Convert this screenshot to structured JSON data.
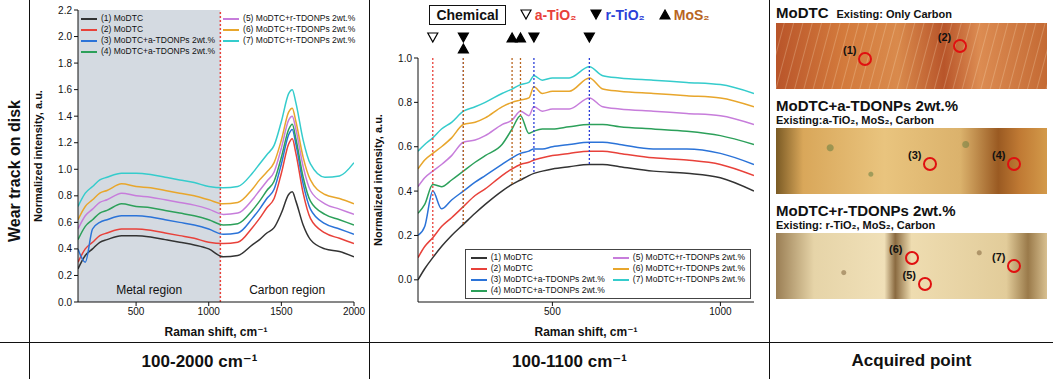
{
  "row_label": "Wear track on disk",
  "column_labels": [
    "100-2000 cm⁻¹",
    "100-1100 cm⁻¹",
    "Acquired point"
  ],
  "chart_data": [
    {
      "type": "line",
      "x_label": "Raman shift, cm⁻¹",
      "y_label": "Normalized intensity, a.u.",
      "x": [
        100,
        150,
        200,
        250,
        300,
        400,
        500,
        600,
        700,
        800,
        900,
        1000,
        1100,
        1200,
        1300,
        1350,
        1400,
        1450,
        1500,
        1550,
        1575,
        1600,
        1650,
        1700,
        1800,
        1900,
        2000
      ],
      "xlim": [
        100,
        2000
      ],
      "xticks": [
        500,
        1000,
        1500,
        2000
      ],
      "ylim": [
        0,
        2.2
      ],
      "yticks": [
        {
          "value": 0,
          "label": "0.0"
        },
        0.2,
        0.4,
        0.6,
        0.8,
        {
          "value": 1,
          "label": "1.0"
        },
        1.2,
        1.4,
        1.6,
        1.8,
        {
          "value": 2,
          "label": "2.0"
        },
        2.2
      ],
      "grid": false,
      "legend": "upper left",
      "series": [
        {
          "name": "(1) MoDTC",
          "color": "#333333",
          "values": [
            0.25,
            0.35,
            0.4,
            0.45,
            0.47,
            0.5,
            0.5,
            0.49,
            0.47,
            0.45,
            0.43,
            0.4,
            0.34,
            0.35,
            0.43,
            0.47,
            0.52,
            0.56,
            0.67,
            0.81,
            0.83,
            0.76,
            0.58,
            0.47,
            0.4,
            0.38,
            0.34
          ]
        },
        {
          "name": "(2) MoDTC",
          "color": "#e8413a",
          "values": [
            0.3,
            0.4,
            0.45,
            0.5,
            0.52,
            0.55,
            0.55,
            0.54,
            0.52,
            0.5,
            0.48,
            0.45,
            0.44,
            0.45,
            0.56,
            0.63,
            0.71,
            0.78,
            0.97,
            1.19,
            1.23,
            1.12,
            0.82,
            0.63,
            0.52,
            0.48,
            0.44
          ]
        },
        {
          "name": "(3) MoDTC+a-TDONPs 2wt.%",
          "color": "#2b73d8",
          "values": [
            0.4,
            0.3,
            0.55,
            0.6,
            0.62,
            0.65,
            0.65,
            0.64,
            0.62,
            0.6,
            0.58,
            0.55,
            0.51,
            0.52,
            0.63,
            0.7,
            0.78,
            0.85,
            1.04,
            1.26,
            1.3,
            1.19,
            0.89,
            0.7,
            0.59,
            0.55,
            0.51
          ]
        },
        {
          "name": "(4) MoDTC+a-TDONPs 2wt.%",
          "color": "#2ca05a",
          "values": [
            0.47,
            0.57,
            0.62,
            0.67,
            0.69,
            0.74,
            0.72,
            0.71,
            0.69,
            0.67,
            0.65,
            0.62,
            0.58,
            0.59,
            0.69,
            0.76,
            0.84,
            0.91,
            1.09,
            1.3,
            1.34,
            1.23,
            0.94,
            0.76,
            0.66,
            0.62,
            0.58
          ]
        },
        {
          "name": "(5) MoDTC+r-TDONPs 2wt.%",
          "color": "#c77ddb",
          "values": [
            0.55,
            0.65,
            0.7,
            0.75,
            0.77,
            0.82,
            0.8,
            0.79,
            0.77,
            0.75,
            0.73,
            0.7,
            0.66,
            0.67,
            0.77,
            0.84,
            0.91,
            0.98,
            1.16,
            1.37,
            1.4,
            1.3,
            1.02,
            0.84,
            0.74,
            0.7,
            0.66
          ]
        },
        {
          "name": "(6) MoDTC+r-TDONPs 2wt.%",
          "color": "#e8a62c",
          "values": [
            0.62,
            0.72,
            0.77,
            0.82,
            0.84,
            0.89,
            0.87,
            0.86,
            0.84,
            0.82,
            0.8,
            0.77,
            0.74,
            0.75,
            0.85,
            0.92,
            0.98,
            1.05,
            1.22,
            1.43,
            1.46,
            1.36,
            1.09,
            0.92,
            0.81,
            0.78,
            0.74
          ]
        },
        {
          "name": "(7) MoDTC+r-TDONPs 2wt.%",
          "color": "#35cccc",
          "values": [
            0.72,
            0.82,
            0.87,
            0.92,
            0.94,
            0.97,
            0.97,
            0.96,
            0.94,
            0.92,
            0.9,
            0.87,
            0.86,
            0.87,
            0.97,
            1.04,
            1.11,
            1.18,
            1.36,
            1.57,
            1.6,
            1.5,
            1.22,
            1.04,
            0.94,
            0.95,
            1.05
          ]
        }
      ],
      "regions": [
        {
          "label": "Metal region",
          "x": [
            100,
            1080
          ],
          "color": "#cdd4dc"
        },
        {
          "label": "Carbon region",
          "x": [
            1080,
            2000
          ]
        }
      ],
      "lines": [
        {
          "x": 1080,
          "color": "#e8413a",
          "line_style": "dotted"
        }
      ]
    },
    {
      "type": "line",
      "x_label": "Raman shift, cm⁻¹",
      "y_label": "Normalized intensity, a.u.",
      "x": [
        100,
        120,
        144,
        170,
        200,
        235,
        270,
        300,
        350,
        380,
        405,
        430,
        445,
        470,
        500,
        550,
        610,
        650,
        700,
        800,
        900,
        1000,
        1100
      ],
      "xlim": [
        100,
        1100
      ],
      "xticks": [
        500,
        1000
      ],
      "ylim": [
        -0.1,
        1
      ],
      "yticks": [
        {
          "value": 0,
          "label": "0.0"
        },
        0.2,
        0.4,
        0.6,
        0.8,
        {
          "value": 1,
          "label": "1.0"
        }
      ],
      "grid": false,
      "legend": "lower right",
      "series": [
        {
          "name": "(1) MoDTC",
          "color": "#333333",
          "values": [
            0,
            0.05,
            0.1,
            0.15,
            0.2,
            0.25,
            0.3,
            0.34,
            0.4,
            0.43,
            0.45,
            0.47,
            0.48,
            0.49,
            0.5,
            0.51,
            0.52,
            0.52,
            0.51,
            0.49,
            0.48,
            0.46,
            0.4
          ]
        },
        {
          "name": "(2) MoDTC",
          "color": "#e8413a",
          "values": [
            0.1,
            0.15,
            0.19,
            0.24,
            0.28,
            0.33,
            0.38,
            0.41,
            0.47,
            0.5,
            0.52,
            0.53,
            0.54,
            0.55,
            0.56,
            0.57,
            0.58,
            0.58,
            0.57,
            0.55,
            0.54,
            0.52,
            0.47
          ]
        },
        {
          "name": "(3) MoDTC+a-TDONPs 2wt.%",
          "color": "#2b73d8",
          "values": [
            0.2,
            0.24,
            0.4,
            0.32,
            0.36,
            0.4,
            0.44,
            0.47,
            0.52,
            0.55,
            0.57,
            0.58,
            0.59,
            0.59,
            0.6,
            0.61,
            0.62,
            0.62,
            0.61,
            0.59,
            0.59,
            0.57,
            0.52
          ]
        },
        {
          "name": "(4) MoDTC+a-TDONPs 2wt.%",
          "color": "#2ca05a",
          "values": [
            0.3,
            0.34,
            0.43,
            0.42,
            0.45,
            0.49,
            0.53,
            0.56,
            0.61,
            0.68,
            0.74,
            0.66,
            0.67,
            0.68,
            0.68,
            0.69,
            0.7,
            0.7,
            0.69,
            0.68,
            0.67,
            0.65,
            0.61
          ]
        },
        {
          "name": "(5) MoDTC+r-TDONPs 2wt.%",
          "color": "#c77ddb",
          "values": [
            0.42,
            0.46,
            0.49,
            0.52,
            0.56,
            0.62,
            0.63,
            0.65,
            0.7,
            0.72,
            0.76,
            0.74,
            0.78,
            0.76,
            0.77,
            0.77,
            0.82,
            0.78,
            0.77,
            0.76,
            0.75,
            0.74,
            0.7
          ]
        },
        {
          "name": "(6) MoDTC+r-TDONPs 2wt.%",
          "color": "#e8a62c",
          "values": [
            0.5,
            0.54,
            0.57,
            0.6,
            0.64,
            0.7,
            0.71,
            0.73,
            0.78,
            0.8,
            0.81,
            0.82,
            0.87,
            0.84,
            0.85,
            0.85,
            0.91,
            0.86,
            0.85,
            0.84,
            0.83,
            0.82,
            0.78
          ]
        },
        {
          "name": "(7) MoDTC+r-TDONPs 2wt.%",
          "color": "#35cccc",
          "values": [
            0.58,
            0.61,
            0.64,
            0.68,
            0.71,
            0.76,
            0.78,
            0.8,
            0.84,
            0.86,
            0.88,
            0.89,
            0.92,
            0.9,
            0.91,
            0.91,
            0.96,
            0.92,
            0.91,
            0.9,
            0.89,
            0.88,
            0.84
          ]
        }
      ],
      "peaks_title": "Chemical",
      "peaks": [
        {
          "name": "a-TiO₂",
          "color": "#e8413a",
          "marker": "triangle-down-open",
          "x": [
            144
          ]
        },
        {
          "name": "r-TiO₂",
          "color": "#2b3fd8",
          "marker": "triangle-down",
          "x": [
            235,
            445,
            610
          ]
        },
        {
          "name": "MoS₂",
          "color": "#b8651f",
          "marker": "triangle-up",
          "x": [
            235,
            380,
            405
          ]
        }
      ]
    }
  ],
  "acquired_point": [
    {
      "title": "MoDTC",
      "existing": "Existing: Only Carbon",
      "points": [
        "(1)",
        "(2)"
      ]
    },
    {
      "title": "MoDTC+a-TDONPs 2wt.%",
      "existing": "Existing:a-TiO₂, MoS₂, Carbon",
      "points": [
        "(3)",
        "(4)"
      ]
    },
    {
      "title": "MoDTC+r-TDONPs 2wt.%",
      "existing": "Existing: r-TiO₂, MoS₂, Carbon",
      "points": [
        "(6)",
        "(5)",
        "(7)"
      ]
    }
  ]
}
